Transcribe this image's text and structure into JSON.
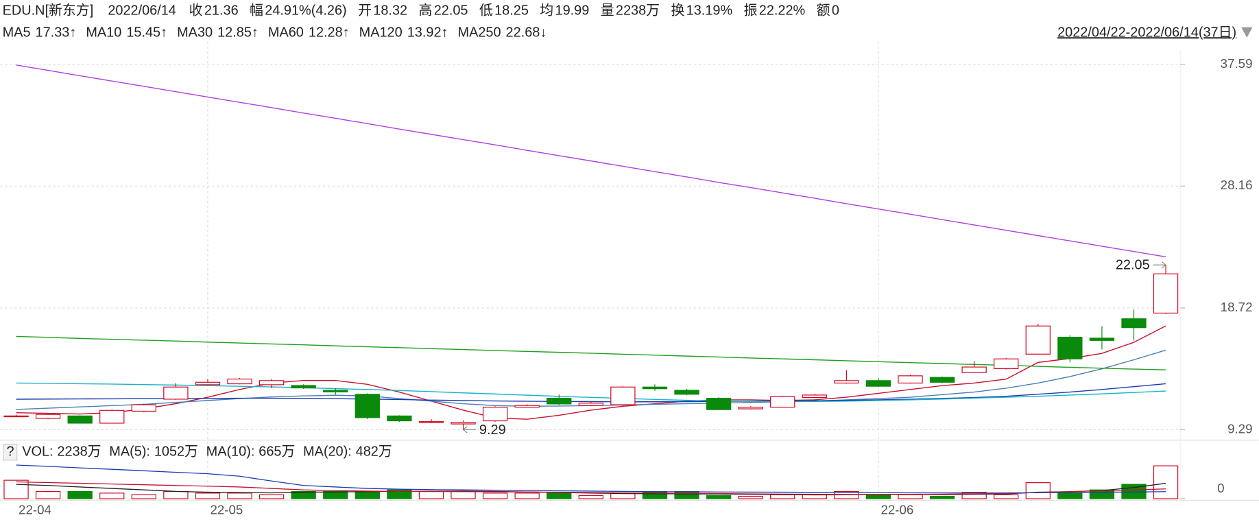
{
  "chart_data": [
    {
      "type": "candlestick",
      "title": "EDU.N[新东方]",
      "date": "2022/06/14",
      "quote": [
        {
          "label": "收",
          "value": "21.36",
          "color": "#d00000"
        },
        {
          "label": "幅",
          "value": "24.91%(4.26)",
          "color": "#d00000"
        },
        {
          "label": "开",
          "value": "18.32",
          "color": "#d00000"
        },
        {
          "label": "高",
          "value": "22.05",
          "color": "#d00000"
        },
        {
          "label": "低",
          "value": "18.25",
          "color": "#d00000"
        },
        {
          "label": "均",
          "value": "19.99",
          "color": "#d00000"
        },
        {
          "label": "量",
          "value": "2238万",
          "color": "#222222"
        },
        {
          "label": "换",
          "value": "13.19%",
          "color": "#222222"
        },
        {
          "label": "振",
          "value": "22.22%",
          "color": "#222222"
        },
        {
          "label": "额",
          "value": "0",
          "color": "#222222"
        }
      ],
      "range": "2022/04/22-2022/06/14(37日)",
      "categories": [
        "22-04",
        null,
        null,
        null,
        null,
        null,
        "22-05",
        null,
        null,
        null,
        null,
        null,
        null,
        null,
        null,
        null,
        null,
        null,
        null,
        null,
        null,
        null,
        null,
        null,
        null,
        null,
        null,
        "22-06",
        null,
        null,
        null,
        null,
        null,
        null,
        null,
        null,
        null
      ],
      "candles": {
        "open": [
          10.35,
          10.16,
          10.35,
          9.79,
          10.72,
          11.65,
          12.77,
          12.84,
          12.77,
          12.71,
          12.34,
          12.03,
          10.35,
          9.91,
          9.73,
          9.97,
          11.03,
          11.72,
          11.16,
          11.22,
          12.59,
          12.34,
          11.72,
          10.9,
          11.03,
          11.78,
          12.9,
          13.09,
          12.9,
          13.34,
          13.71,
          14.02,
          15.14,
          16.45,
          16.38,
          17.88,
          18.32
        ],
        "high": [
          10.45,
          10.55,
          10.4,
          10.85,
          11.3,
          12.9,
          13.2,
          13.3,
          13.2,
          12.8,
          12.5,
          12.1,
          10.4,
          10.1,
          10.0,
          11.1,
          11.25,
          12.0,
          11.45,
          12.65,
          12.8,
          12.45,
          11.8,
          11.1,
          11.9,
          12.05,
          13.9,
          13.3,
          13.55,
          13.4,
          14.6,
          14.85,
          17.5,
          16.6,
          17.3,
          18.6,
          22.05
        ],
        "low": [
          10.25,
          10.1,
          9.75,
          9.75,
          10.65,
          11.6,
          12.7,
          12.8,
          12.5,
          12.45,
          12.0,
          10.1,
          9.9,
          9.8,
          9.29,
          9.9,
          11.0,
          11.2,
          11.1,
          11.15,
          12.3,
          11.95,
          10.8,
          10.85,
          11.0,
          11.75,
          12.85,
          12.6,
          12.85,
          12.9,
          13.65,
          13.95,
          15.1,
          14.5,
          15.5,
          16.2,
          18.25
        ],
        "close": [
          10.35,
          10.47,
          9.79,
          10.78,
          11.22,
          12.59,
          12.96,
          13.21,
          13.09,
          12.52,
          12.21,
          10.22,
          9.97,
          9.91,
          9.85,
          11.03,
          11.16,
          11.28,
          11.34,
          12.59,
          12.46,
          12.03,
          10.84,
          11.03,
          11.84,
          11.97,
          13.09,
          12.65,
          13.46,
          12.96,
          14.14,
          14.77,
          17.32,
          14.77,
          16.2,
          17.19,
          21.36
        ]
      },
      "up_color": "#d0021b",
      "down_color": "#0a8a0a",
      "lines": [
        {
          "name": "MA5",
          "label": "17.33↑",
          "color": "#c8102e",
          "values": [
            10.6,
            10.55,
            10.5,
            10.6,
            10.9,
            11.3,
            11.8,
            12.4,
            12.9,
            13.1,
            13.1,
            12.8,
            12.2,
            11.5,
            10.8,
            10.2,
            10.1,
            10.4,
            10.8,
            11.1,
            11.3,
            11.5,
            11.6,
            11.6,
            11.55,
            11.6,
            11.8,
            12.1,
            12.4,
            12.7,
            12.9,
            13.2,
            14.5,
            14.8,
            15.2,
            16.05,
            17.33
          ]
        },
        {
          "name": "MA10",
          "label": "15.45↑",
          "color": "#4a7fb5",
          "values": [
            10.85,
            10.95,
            11.05,
            11.15,
            11.25,
            11.4,
            11.55,
            11.7,
            11.82,
            11.9,
            11.95,
            11.9,
            11.7,
            11.5,
            11.3,
            11.15,
            11.1,
            11.12,
            11.15,
            11.2,
            11.25,
            11.3,
            11.35,
            11.4,
            11.45,
            11.5,
            11.6,
            11.7,
            11.8,
            12.0,
            12.2,
            12.5,
            12.9,
            13.4,
            14.0,
            14.7,
            15.45
          ]
        },
        {
          "name": "MA30",
          "label": "12.85↑",
          "color": "#1a3bb0",
          "values": [
            11.65,
            11.66,
            11.67,
            11.68,
            11.69,
            11.7,
            11.71,
            11.72,
            11.72,
            11.71,
            11.69,
            11.66,
            11.62,
            11.58,
            11.54,
            11.51,
            11.49,
            11.47,
            11.46,
            11.45,
            11.45,
            11.46,
            11.47,
            11.49,
            11.51,
            11.53,
            11.56,
            11.6,
            11.65,
            11.71,
            11.78,
            11.88,
            12.03,
            12.2,
            12.4,
            12.62,
            12.85
          ]
        },
        {
          "name": "MA60",
          "label": "12.28↑",
          "color": "#17b3c9",
          "values": [
            12.9,
            12.88,
            12.85,
            12.82,
            12.78,
            12.74,
            12.7,
            12.65,
            12.6,
            12.54,
            12.47,
            12.4,
            12.32,
            12.23,
            12.14,
            12.05,
            11.96,
            11.87,
            11.79,
            11.71,
            11.63,
            11.56,
            11.5,
            11.47,
            11.46,
            11.47,
            11.5,
            11.54,
            11.6,
            11.66,
            11.73,
            11.8,
            11.88,
            11.97,
            12.06,
            12.17,
            12.28
          ]
        },
        {
          "name": "MA120",
          "label": "13.92↑",
          "color": "#1ea01e",
          "values": [
            16.51,
            16.44,
            16.36,
            16.29,
            16.22,
            16.15,
            16.07,
            16.0,
            15.93,
            15.86,
            15.78,
            15.71,
            15.64,
            15.57,
            15.5,
            15.42,
            15.35,
            15.28,
            15.21,
            15.13,
            15.06,
            14.99,
            14.92,
            14.84,
            14.77,
            14.7,
            14.63,
            14.55,
            14.48,
            14.41,
            14.34,
            14.27,
            14.19,
            14.12,
            14.05,
            13.98,
            13.92
          ]
        },
        {
          "name": "MA250",
          "label": "22.68↓",
          "color": "#b03fe0",
          "values": [
            37.54,
            37.13,
            36.71,
            36.3,
            35.89,
            35.47,
            35.06,
            34.65,
            34.24,
            33.82,
            33.41,
            33.0,
            32.58,
            32.17,
            31.76,
            31.35,
            30.93,
            30.52,
            30.11,
            29.69,
            29.28,
            28.87,
            28.45,
            28.04,
            27.63,
            27.22,
            26.8,
            26.39,
            25.98,
            25.56,
            25.15,
            24.74,
            24.32,
            23.91,
            23.5,
            23.09,
            22.68
          ]
        }
      ],
      "annotations": [
        {
          "text": "22.05",
          "color": "#c00000"
        },
        {
          "text": "9.29",
          "color": "#0a8a0a"
        }
      ],
      "ylim": [
        8.48,
        38.72
      ],
      "yticks": [
        9.29,
        18.72,
        28.16,
        37.59
      ],
      "grid": true
    },
    {
      "type": "bar",
      "legend_icon": "?",
      "series": [
        {
          "name": "VOL:",
          "label": "2238万",
          "values": [
            1256,
            490,
            490,
            382,
            273,
            490,
            382,
            382,
            273,
            490,
            490,
            490,
            600,
            490,
            490,
            382,
            382,
            382,
            218,
            382,
            490,
            490,
            218,
            164,
            273,
            273,
            490,
            273,
            273,
            164,
            436,
            273,
            1092,
            382,
            600,
            982,
            2238
          ]
        }
      ],
      "lines": [
        {
          "name": "MA(5):",
          "label": "1052万",
          "color": "#222222",
          "values": [
            980,
            900,
            800,
            700,
            600,
            500,
            440,
            420,
            400,
            450,
            460,
            480,
            500,
            510,
            520,
            500,
            460,
            420,
            380,
            350,
            340,
            330,
            320,
            300,
            280,
            260,
            270,
            290,
            300,
            280,
            300,
            320,
            440,
            480,
            560,
            760,
            1052
          ]
        },
        {
          "name": "MA(10):",
          "label": "665万",
          "color": "#c8102e",
          "values": [
            1150,
            1100,
            1050,
            1000,
            950,
            900,
            850,
            800,
            700,
            600,
            550,
            520,
            500,
            490,
            480,
            470,
            460,
            440,
            420,
            400,
            380,
            360,
            350,
            330,
            310,
            300,
            290,
            290,
            300,
            310,
            330,
            360,
            420,
            480,
            540,
            600,
            665
          ]
        },
        {
          "name": "MA(20):",
          "label": "482万",
          "color": "#1a3bb0",
          "values": [
            2290,
            2200,
            2100,
            2000,
            1900,
            1800,
            1700,
            1530,
            1200,
            900,
            800,
            700,
            650,
            620,
            600,
            580,
            560,
            540,
            520,
            500,
            480,
            470,
            460,
            450,
            440,
            430,
            420,
            410,
            400,
            400,
            395,
            395,
            410,
            420,
            440,
            460,
            482
          ]
        }
      ],
      "ylim": [
        0,
        2350
      ],
      "yticks": [
        0
      ]
    }
  ]
}
